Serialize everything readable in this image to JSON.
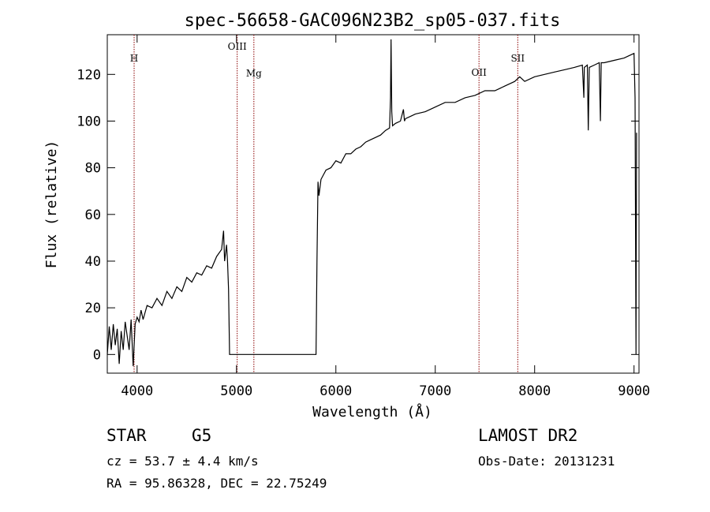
{
  "chart_data": {
    "type": "line",
    "title": "spec-56658-GAC096N23B2_sp05-037.fits",
    "xlabel": "Wavelength (Å)",
    "ylabel": "Flux (relative)",
    "xlim": [
      3700,
      9050
    ],
    "ylim": [
      -8,
      137
    ],
    "x_ticks": [
      4000,
      5000,
      6000,
      7000,
      8000,
      9000
    ],
    "y_ticks": [
      0,
      20,
      40,
      60,
      80,
      100,
      120
    ],
    "grid": false,
    "series": [
      {
        "points": [
          [
            3700,
            0
          ],
          [
            3720,
            12
          ],
          [
            3740,
            2
          ],
          [
            3760,
            13
          ],
          [
            3780,
            4
          ],
          [
            3800,
            11
          ],
          [
            3820,
            -4
          ],
          [
            3840,
            10
          ],
          [
            3860,
            2
          ],
          [
            3880,
            14
          ],
          [
            3900,
            8
          ],
          [
            3920,
            2
          ],
          [
            3940,
            15
          ],
          [
            3960,
            -5
          ],
          [
            3980,
            13
          ],
          [
            4000,
            16
          ],
          [
            4020,
            14
          ],
          [
            4040,
            19
          ],
          [
            4060,
            15
          ],
          [
            4080,
            18
          ],
          [
            4100,
            21
          ],
          [
            4150,
            20
          ],
          [
            4200,
            24
          ],
          [
            4250,
            21
          ],
          [
            4300,
            27
          ],
          [
            4350,
            24
          ],
          [
            4400,
            29
          ],
          [
            4450,
            27
          ],
          [
            4500,
            33
          ],
          [
            4550,
            31
          ],
          [
            4600,
            35
          ],
          [
            4650,
            34
          ],
          [
            4700,
            38
          ],
          [
            4750,
            37
          ],
          [
            4800,
            42
          ],
          [
            4850,
            45
          ],
          [
            4870,
            53
          ],
          [
            4880,
            40
          ],
          [
            4900,
            47
          ],
          [
            4910,
            40
          ],
          [
            4920,
            28
          ],
          [
            4930,
            0
          ],
          [
            5800,
            0
          ],
          [
            5810,
            40
          ],
          [
            5820,
            74
          ],
          [
            5830,
            68
          ],
          [
            5850,
            75
          ],
          [
            5900,
            79
          ],
          [
            5950,
            80
          ],
          [
            6000,
            83
          ],
          [
            6050,
            82
          ],
          [
            6100,
            86
          ],
          [
            6150,
            86
          ],
          [
            6200,
            88
          ],
          [
            6250,
            89
          ],
          [
            6300,
            91
          ],
          [
            6350,
            92
          ],
          [
            6400,
            93
          ],
          [
            6450,
            94
          ],
          [
            6500,
            96
          ],
          [
            6540,
            97
          ],
          [
            6550,
            110
          ],
          [
            6555,
            135
          ],
          [
            6562,
            104
          ],
          [
            6570,
            98
          ],
          [
            6600,
            99
          ],
          [
            6650,
            100
          ],
          [
            6680,
            105
          ],
          [
            6690,
            100
          ],
          [
            6700,
            101
          ],
          [
            6750,
            102
          ],
          [
            6800,
            103
          ],
          [
            6900,
            104
          ],
          [
            7000,
            106
          ],
          [
            7100,
            108
          ],
          [
            7200,
            108
          ],
          [
            7300,
            110
          ],
          [
            7400,
            111
          ],
          [
            7500,
            113
          ],
          [
            7600,
            113
          ],
          [
            7700,
            115
          ],
          [
            7800,
            117
          ],
          [
            7850,
            119
          ],
          [
            7900,
            117
          ],
          [
            8000,
            119
          ],
          [
            8100,
            120
          ],
          [
            8200,
            121
          ],
          [
            8300,
            122
          ],
          [
            8400,
            123
          ],
          [
            8480,
            124
          ],
          [
            8495,
            110
          ],
          [
            8500,
            123
          ],
          [
            8530,
            124
          ],
          [
            8540,
            96
          ],
          [
            8550,
            123
          ],
          [
            8600,
            124
          ],
          [
            8650,
            125
          ],
          [
            8662,
            100
          ],
          [
            8670,
            125
          ],
          [
            8700,
            125
          ],
          [
            8800,
            126
          ],
          [
            8900,
            127
          ],
          [
            8950,
            128
          ],
          [
            9000,
            129
          ],
          [
            9010,
            110
          ],
          [
            9020,
            0
          ],
          [
            9025,
            95
          ]
        ]
      }
    ],
    "lines": [
      {
        "label": "H",
        "x": 3970
      },
      {
        "label": "OIII",
        "x": 5007
      },
      {
        "label": "Mg",
        "x": 5175
      },
      {
        "label": "OII",
        "x": 7440
      },
      {
        "label": "SII",
        "x": 7830
      }
    ],
    "line_color": "#8b0000",
    "spectrum_color": "#000000"
  },
  "info": {
    "class_label": "STAR",
    "subclass": "G5",
    "survey": "LAMOST DR2",
    "cz": "cz = 53.7 ± 4.4 km/s",
    "obs_date": "Obs-Date: 20131231",
    "radec": "RA =  95.86328, DEC =  22.75249"
  }
}
